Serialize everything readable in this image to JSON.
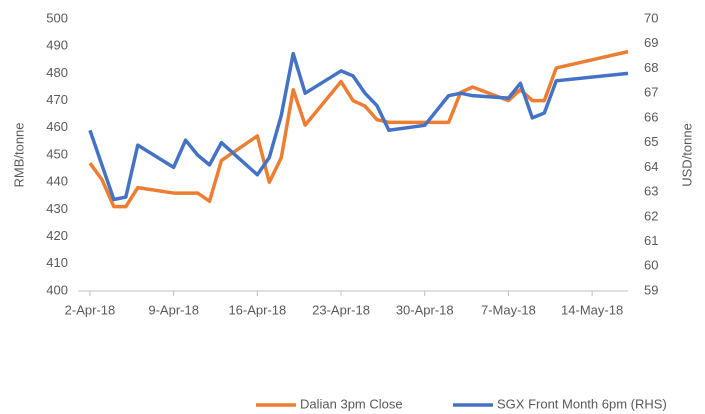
{
  "chart_data": {
    "type": "line",
    "xlim": [
      "2018-04-01",
      "2018-05-17"
    ],
    "xticks": [
      {
        "value": "2018-04-02",
        "label": "2-Apr-18"
      },
      {
        "value": "2018-04-09",
        "label": "9-Apr-18"
      },
      {
        "value": "2018-04-16",
        "label": "16-Apr-18"
      },
      {
        "value": "2018-04-23",
        "label": "23-Apr-18"
      },
      {
        "value": "2018-04-30",
        "label": "30-Apr-18"
      },
      {
        "value": "2018-05-07",
        "label": "7-May-18"
      },
      {
        "value": "2018-05-14",
        "label": "14-May-18"
      }
    ],
    "ylabel": "RMB/tonne",
    "ylim": [
      400,
      500
    ],
    "yticks": [
      400,
      410,
      420,
      430,
      440,
      450,
      460,
      470,
      480,
      490,
      500
    ],
    "y2label": "USD/tonne",
    "y2lim": [
      59,
      70
    ],
    "y2ticks": [
      59,
      60,
      61,
      62,
      63,
      64,
      65,
      66,
      67,
      68,
      69,
      70
    ],
    "legend": "bottom",
    "series": [
      {
        "name": "Dalian 3pm Close",
        "color": "#ed7d31",
        "x": [
          "2018-04-02",
          "2018-04-03",
          "2018-04-04",
          "2018-04-05",
          "2018-04-06",
          "2018-04-09",
          "2018-04-10",
          "2018-04-11",
          "2018-04-12",
          "2018-04-13",
          "2018-04-16",
          "2018-04-17",
          "2018-04-18",
          "2018-04-19",
          "2018-04-20",
          "2018-04-23",
          "2018-04-24",
          "2018-04-25",
          "2018-04-26",
          "2018-04-27",
          "2018-05-02",
          "2018-05-03",
          "2018-05-04",
          "2018-05-07",
          "2018-05-08",
          "2018-05-09",
          "2018-05-10",
          "2018-05-11",
          "2018-05-14",
          "2018-05-17"
        ],
        "values": [
          447,
          441,
          431,
          431,
          438,
          436,
          436,
          436,
          433,
          448,
          457,
          440,
          449,
          474,
          461,
          477,
          470,
          468,
          463,
          462,
          462,
          473,
          475,
          470,
          474,
          470,
          470,
          482,
          485,
          488
        ]
      },
      {
        "name": "SGX Front Month 6pm (RHS)",
        "color": "#4472c4",
        "axis": "y2",
        "x": [
          "2018-04-02",
          "2018-04-04",
          "2018-04-05",
          "2018-04-06",
          "2018-04-09",
          "2018-04-10",
          "2018-04-11",
          "2018-04-12",
          "2018-04-13",
          "2018-04-16",
          "2018-04-17",
          "2018-04-18",
          "2018-04-19",
          "2018-04-20",
          "2018-04-23",
          "2018-04-24",
          "2018-04-25",
          "2018-04-26",
          "2018-04-27",
          "2018-04-30",
          "2018-05-02",
          "2018-05-03",
          "2018-05-04",
          "2018-05-07",
          "2018-05-08",
          "2018-05-09",
          "2018-05-10",
          "2018-05-11",
          "2018-05-17"
        ],
        "values": [
          65.5,
          62.7,
          62.8,
          64.9,
          64.0,
          65.1,
          64.5,
          64.1,
          65.0,
          63.7,
          64.4,
          66.1,
          68.6,
          67.0,
          67.9,
          67.7,
          67.0,
          66.5,
          65.5,
          65.7,
          66.9,
          67.0,
          66.9,
          66.8,
          67.4,
          66.0,
          66.2,
          67.5,
          67.8
        ]
      }
    ]
  }
}
